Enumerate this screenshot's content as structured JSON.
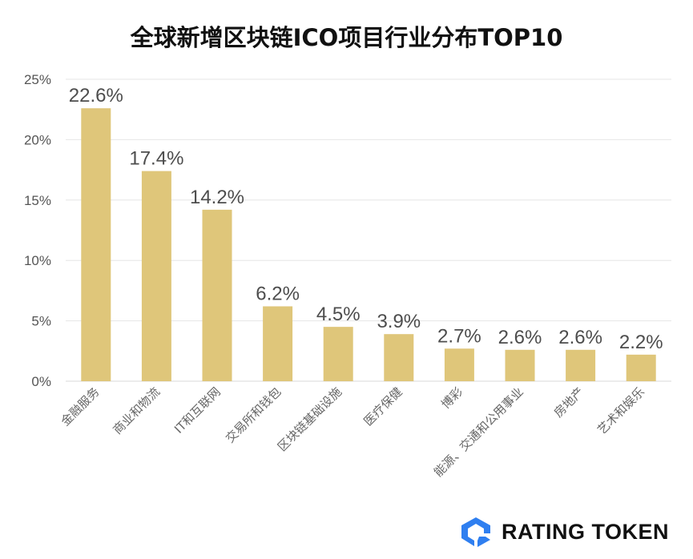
{
  "chart_data": {
    "type": "bar",
    "title": "全球新增区块链ICO项目行业分布TOP10",
    "categories": [
      "金融服务",
      "商业和物流",
      "IT和互联网",
      "交易所和钱包",
      "区块链基础设施",
      "医疗保健",
      "博彩",
      "能源、交通和公用事业",
      "房地产",
      "艺术和娱乐"
    ],
    "values": [
      22.6,
      17.4,
      14.2,
      6.2,
      4.5,
      3.9,
      2.7,
      2.6,
      2.6,
      2.2
    ],
    "data_labels": [
      "22.6%",
      "17.4%",
      "14.2%",
      "6.2%",
      "4.5%",
      "3.9%",
      "2.7%",
      "2.6%",
      "2.6%",
      "2.2%"
    ],
    "yticks": [
      0,
      5,
      10,
      15,
      20,
      25
    ],
    "ytick_labels": [
      "0%",
      "5%",
      "10%",
      "15%",
      "20%",
      "25%"
    ],
    "ylim": [
      0,
      25
    ],
    "xlabel": "",
    "ylabel": "",
    "grid": true,
    "legend": "none",
    "bar_color": "#dfc67a",
    "grid_color": "#e6e6e6"
  },
  "brand": {
    "name": "RATING TOKEN",
    "logo_color": "#2f7ff0"
  }
}
